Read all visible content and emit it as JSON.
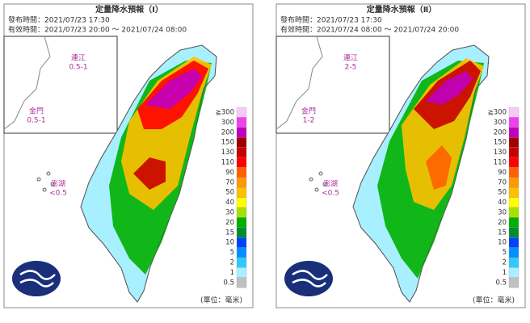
{
  "panels": [
    {
      "title": "定量降水預報（Ⅰ）",
      "issued": "發布時間：2021/07/23 17:30",
      "valid": "有效時間：2021/07/23 20:00 ～ 2021/07/24 08:00",
      "islands": [
        {
          "name": "連江",
          "amount": "0.5-1"
        },
        {
          "name": "金門",
          "amount": "0.5-1"
        },
        {
          "name": "澎湖",
          "amount": "<0.5"
        }
      ]
    },
    {
      "title": "定量降水預報（Ⅱ）",
      "issued": "發布時間：2021/07/23 17:30",
      "valid": "有效時間：2021/07/24 08:00 ～ 2021/07/24 20:00",
      "islands": [
        {
          "name": "連江",
          "amount": "2-5"
        },
        {
          "name": "金門",
          "amount": "1-2"
        },
        {
          "name": "澎湖",
          "amount": "<0.5"
        }
      ]
    }
  ],
  "legend": {
    "levels": [
      {
        "label": "≧300",
        "color": "#f8c8f8"
      },
      {
        "label": "300",
        "color": "#f040f0"
      },
      {
        "label": "200",
        "color": "#c000c0"
      },
      {
        "label": "150",
        "color": "#a00000"
      },
      {
        "label": "130",
        "color": "#c80000"
      },
      {
        "label": "110",
        "color": "#ff0000"
      },
      {
        "label": "90",
        "color": "#ff6000"
      },
      {
        "label": "70",
        "color": "#ff9900"
      },
      {
        "label": "50",
        "color": "#ffc000"
      },
      {
        "label": "40",
        "color": "#ffff00"
      },
      {
        "label": "30",
        "color": "#a8e000"
      },
      {
        "label": "20",
        "color": "#00b000"
      },
      {
        "label": "15",
        "color": "#008c30"
      },
      {
        "label": "10",
        "color": "#0040ff"
      },
      {
        "label": "5",
        "color": "#0090ff"
      },
      {
        "label": "2",
        "color": "#30c8ff"
      },
      {
        "label": "1",
        "color": "#a8f0ff"
      },
      {
        "label": "0.5",
        "color": "#c0c0c0"
      }
    ]
  },
  "unit": "(單位：毫米)"
}
